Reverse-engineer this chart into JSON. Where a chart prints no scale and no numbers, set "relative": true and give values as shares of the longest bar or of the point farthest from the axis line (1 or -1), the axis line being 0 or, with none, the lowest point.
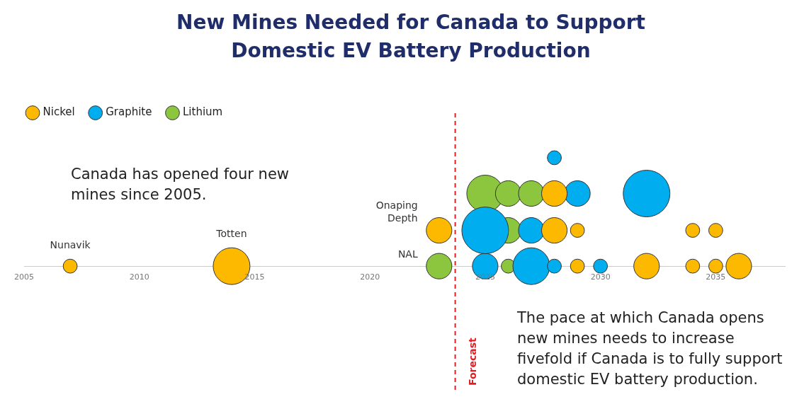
{
  "chart_data": {
    "type": "bubble",
    "title": "New Mines Needed for Canada to Support Domestic EV Battery Production",
    "relative": true,
    "legend": "top left",
    "grid": false,
    "tick_labels": "x",
    "xlim": [
      2005,
      2038
    ],
    "xticks": [
      2005,
      2010,
      2015,
      2020,
      2025,
      2030,
      2035
    ],
    "series": [
      {
        "name": "Nickel",
        "color": "#fcb900",
        "x": [
          2007,
          2014,
          2029,
          2032,
          2034,
          2035,
          2036,
          2023,
          2028,
          2029,
          2034,
          2035,
          2028
        ],
        "values": [
          0,
          0,
          0,
          0,
          0,
          0,
          0,
          0.33,
          0.33,
          0.33,
          0.33,
          0.33,
          0.67
        ],
        "sizes": [
          0.09,
          0.62,
          0.09,
          0.3,
          0.09,
          0.09,
          0.3,
          0.3,
          0.3,
          0.09,
          0.09,
          0.09,
          0.3
        ]
      },
      {
        "name": "Graphite",
        "color": "#00adef",
        "x": [
          2025,
          2027,
          2028,
          2030,
          2025,
          2027,
          2029,
          2032,
          2028
        ],
        "values": [
          0,
          0,
          0,
          0,
          0.33,
          0.33,
          0.67,
          0.67,
          1
        ],
        "sizes": [
          0.3,
          0.62,
          0.09,
          0.09,
          1,
          0.3,
          0.3,
          1,
          0.09
        ]
      },
      {
        "name": "Lithium",
        "color": "#8cc63f",
        "x": [
          2023,
          2026,
          2026,
          2025,
          2026,
          2027
        ],
        "values": [
          0,
          0,
          0.33,
          0.67,
          0.67,
          0.67
        ],
        "sizes": [
          0.3,
          0.09,
          0.3,
          0.62,
          0.3,
          0.3
        ]
      }
    ],
    "ref_lines": [
      {
        "axis": "x",
        "value": 2023.7,
        "label": "Forecast",
        "color": "#e31e24",
        "line_style": "dashed"
      }
    ],
    "annotations": [
      {
        "text": "Nunavik",
        "x": 2007,
        "y": 0
      },
      {
        "text": "Totten",
        "x": 2014,
        "y": 0
      },
      {
        "text": "Onaping Depth",
        "x": 2023,
        "y": 0.33
      },
      {
        "text": "NAL",
        "x": 2023,
        "y": 0
      },
      "Canada has opened four new mines since 2005.",
      "The pace at which Canada opens new mines needs to increase fivefold if Canada is to fully support domestic EV battery production."
    ]
  }
}
